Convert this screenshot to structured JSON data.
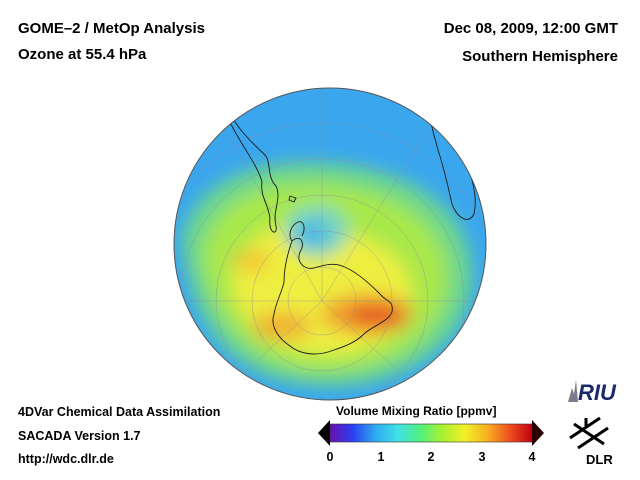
{
  "header": {
    "title_line1": "GOME–2 / MetOp Analysis",
    "title_line2": "Ozone at 55.4 hPa",
    "date": "Dec 08, 2009, 12:00 GMT",
    "region": "Southern Hemisphere"
  },
  "footer": {
    "line1": "4DVar Chemical Data Assimilation",
    "line2": "SACADA Version 1.7",
    "url": "http://wdc.dlr.de"
  },
  "colorbar": {
    "title": "Volume Mixing Ratio [ppmv]",
    "ticks": [
      "0",
      "1",
      "2",
      "3",
      "4"
    ],
    "range": [
      0,
      4
    ],
    "colors": [
      "#000000",
      "#6a0fb0",
      "#2a3ff0",
      "#2fa8f0",
      "#3fe0e8",
      "#50f080",
      "#a8f030",
      "#f0f028",
      "#f8b020",
      "#f05020",
      "#c00010",
      "#2a0000"
    ]
  },
  "map": {
    "projection": "orthographic",
    "center": "south-pole",
    "field_colors": {
      "low": "#3aa0f0",
      "mid": "#7ae070",
      "high": "#f2ee40",
      "max": "#e84028"
    }
  },
  "logos": {
    "riu": "RIU",
    "dlr": "DLR"
  }
}
